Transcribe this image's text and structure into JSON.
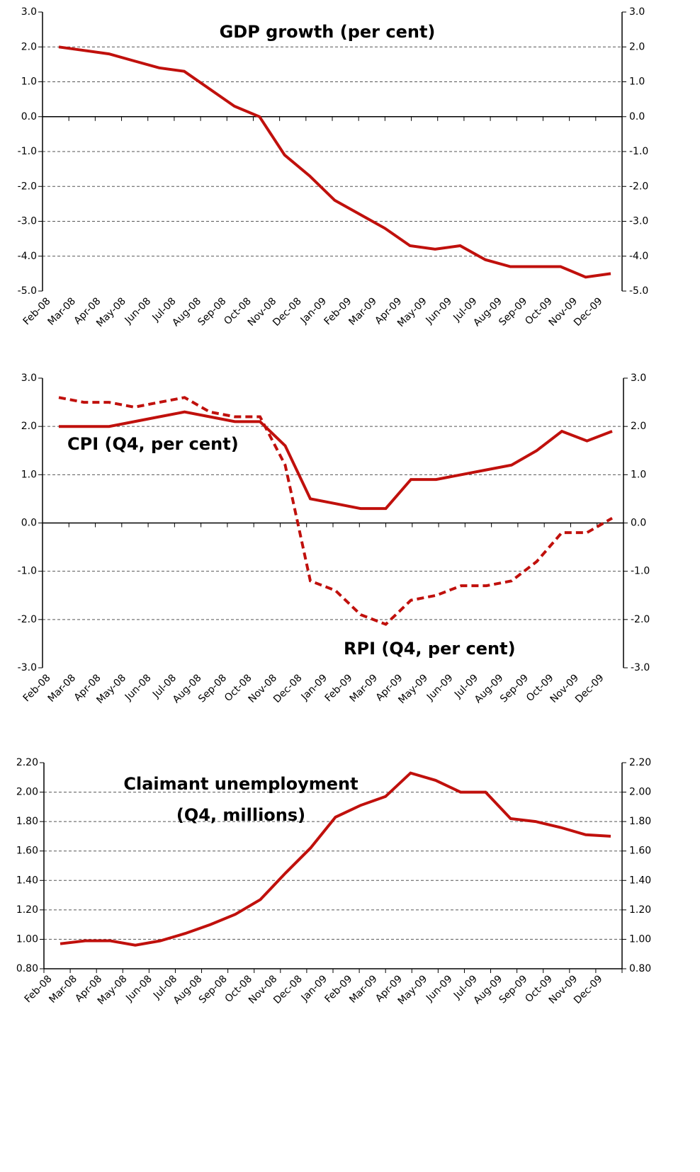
{
  "chart_data": [
    {
      "type": "line",
      "title": "GDP growth (per cent)",
      "categories": [
        "Feb-08",
        "Mar-08",
        "Apr-08",
        "May-08",
        "Jun-08",
        "Jul-08",
        "Aug-08",
        "Sep-08",
        "Oct-08",
        "Nov-08",
        "Dec-08",
        "Jan-09",
        "Feb-09",
        "Mar-09",
        "Apr-09",
        "May-09",
        "Jun-09",
        "Jul-09",
        "Aug-09",
        "Sep-09",
        "Oct-09",
        "Nov-09",
        "Dec-09"
      ],
      "series": [
        {
          "color": "#c0100c",
          "dash": false,
          "values": [
            2.0,
            1.9,
            1.8,
            1.6,
            1.4,
            1.3,
            0.8,
            0.3,
            0.0,
            -1.1,
            -1.7,
            -2.4,
            -2.8,
            -3.2,
            -3.7,
            -3.8,
            -3.7,
            -4.1,
            -4.3,
            -4.3,
            -4.3,
            -4.6,
            -4.5
          ]
        }
      ],
      "ylim": [
        -5,
        3
      ],
      "yticks": [
        {
          "value": -5,
          "label": "-5.0"
        },
        {
          "value": -4,
          "label": "-4.0"
        },
        {
          "value": -3,
          "label": "-3.0"
        },
        {
          "value": -2,
          "label": "-2.0"
        },
        {
          "value": -1,
          "label": "-1.0"
        },
        {
          "value": 0,
          "label": "0.0"
        },
        {
          "value": 1,
          "label": "1.0"
        },
        {
          "value": 2,
          "label": "2.0"
        },
        {
          "value": 3,
          "label": "3.0"
        }
      ],
      "grid": true
    },
    {
      "type": "line",
      "categories": [
        "Feb-08",
        "Mar-08",
        "Apr-08",
        "May-08",
        "Jun-08",
        "Jul-08",
        "Aug-08",
        "Sep-08",
        "Oct-08",
        "Nov-08",
        "Dec-08",
        "Jan-09",
        "Feb-09",
        "Mar-09",
        "Apr-09",
        "May-09",
        "Jun-09",
        "Jul-09",
        "Aug-09",
        "Sep-09",
        "Oct-09",
        "Nov-09",
        "Dec-09"
      ],
      "series": [
        {
          "name": "CPI (Q4, per cent)",
          "color": "#c0100c",
          "dash": false,
          "values": [
            2.0,
            2.0,
            2.0,
            2.1,
            2.2,
            2.3,
            2.2,
            2.1,
            2.1,
            1.6,
            0.5,
            0.4,
            0.3,
            0.3,
            0.9,
            0.9,
            1.0,
            1.1,
            1.2,
            1.5,
            1.9,
            1.7,
            1.9
          ]
        },
        {
          "name": "RPI (Q4, per cent)",
          "color": "#c0100c",
          "dash": true,
          "values": [
            2.6,
            2.5,
            2.5,
            2.4,
            2.5,
            2.6,
            2.3,
            2.2,
            2.2,
            1.2,
            -1.2,
            -1.4,
            -1.9,
            -2.1,
            -1.6,
            -1.5,
            -1.3,
            -1.3,
            -1.2,
            -0.8,
            -0.2,
            -0.2,
            0.1
          ]
        }
      ],
      "ylim": [
        -3,
        3
      ],
      "yticks": [
        {
          "value": -3,
          "label": "-3.0"
        },
        {
          "value": -2,
          "label": "-2.0"
        },
        {
          "value": -1,
          "label": "-1.0"
        },
        {
          "value": 0,
          "label": "0.0"
        },
        {
          "value": 1,
          "label": "1.0"
        },
        {
          "value": 2,
          "label": "2.0"
        },
        {
          "value": 3,
          "label": "3.0"
        }
      ],
      "grid": true
    },
    {
      "type": "line",
      "title": [
        "Claimant unemployment",
        "(Q4, millions)"
      ],
      "categories": [
        "Feb-08",
        "Mar-08",
        "Apr-08",
        "May-08",
        "Jun-08",
        "Jul-08",
        "Aug-08",
        "Sep-08",
        "Oct-08",
        "Nov-08",
        "Dec-08",
        "Jan-09",
        "Feb-09",
        "Mar-09",
        "Apr-09",
        "May-09",
        "Jun-09",
        "Jul-09",
        "Aug-09",
        "Sep-09",
        "Oct-09",
        "Nov-09",
        "Dec-09"
      ],
      "series": [
        {
          "color": "#c0100c",
          "dash": false,
          "values": [
            0.97,
            0.99,
            0.99,
            0.96,
            0.99,
            1.04,
            1.1,
            1.17,
            1.27,
            1.45,
            1.62,
            1.83,
            1.91,
            1.97,
            2.13,
            2.08,
            2.0,
            2.0,
            1.82,
            1.8,
            1.76,
            1.71,
            1.7
          ]
        }
      ],
      "ylim": [
        0.8,
        2.2
      ],
      "yticks": [
        {
          "value": 0.8,
          "label": "0.80"
        },
        {
          "value": 1.0,
          "label": "1.00"
        },
        {
          "value": 1.2,
          "label": "1.20"
        },
        {
          "value": 1.4,
          "label": "1.40"
        },
        {
          "value": 1.6,
          "label": "1.60"
        },
        {
          "value": 1.8,
          "label": "1.80"
        },
        {
          "value": 2.0,
          "label": "2.00"
        },
        {
          "value": 2.2,
          "label": "2.20"
        }
      ],
      "grid": true
    }
  ]
}
